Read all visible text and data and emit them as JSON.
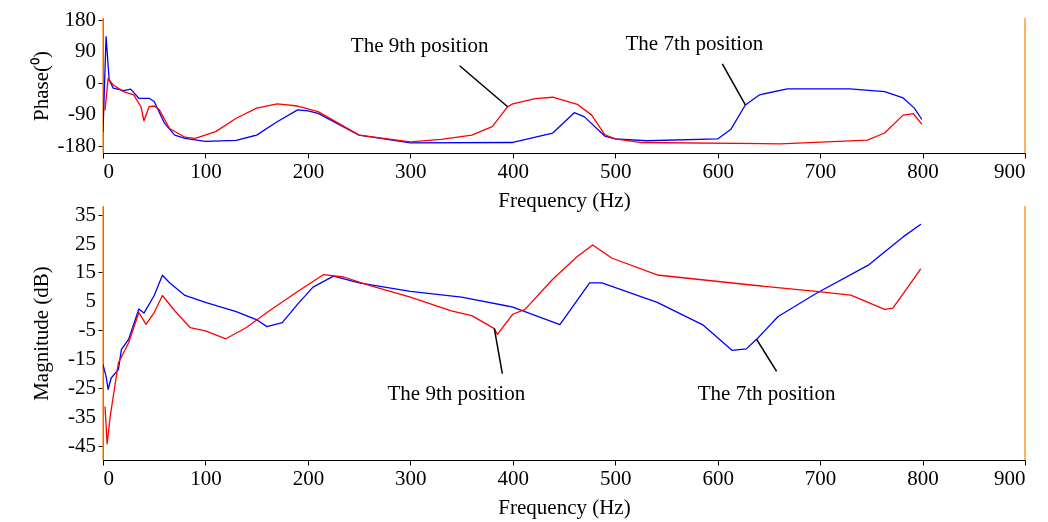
{
  "chart_data": [
    {
      "type": "line",
      "ylabel": "Phase(⁰)",
      "xlabel": "Frequency (Hz)",
      "xlim": [
        0,
        900
      ],
      "xticks": [
        0,
        100,
        200,
        300,
        400,
        500,
        600,
        700,
        800,
        900
      ],
      "ylim": [
        -200,
        185
      ],
      "yticks": [
        -180,
        -90,
        0,
        90,
        180
      ],
      "grid": false,
      "series": [
        {
          "color": "#0000ff",
          "x": [
            0,
            3,
            6,
            10,
            20,
            27,
            35,
            45,
            50,
            60,
            70,
            80,
            100,
            130,
            150,
            170,
            190,
            200,
            210,
            250,
            300,
            400,
            439,
            460,
            470,
            490,
            500,
            531,
            600,
            613,
            627,
            641,
            668,
            729,
            763,
            781,
            792,
            799
          ],
          "values": [
            -140,
            132,
            9,
            -15,
            -22,
            -18,
            -44,
            -44,
            -53,
            -115,
            -149,
            -158,
            -167,
            -164,
            -149,
            -111,
            -77,
            -80,
            -87,
            -149,
            -171,
            -170,
            -143,
            -85,
            -97,
            -152,
            -160,
            -165,
            -160,
            -132,
            -63,
            -34,
            -17,
            -17,
            -25,
            -43,
            -72,
            -103
          ]
        },
        {
          "color": "#ff0000",
          "x": [
            2,
            5,
            10,
            20,
            30,
            37,
            40,
            45,
            50,
            55,
            65,
            80,
            90,
            110,
            130,
            150,
            170,
            190,
            210,
            250,
            300,
            330,
            360,
            380,
            395,
            400,
            422,
            439,
            463,
            477,
            490,
            500,
            524,
            661,
            746,
            763,
            781,
            791,
            799
          ],
          "values": [
            -77,
            13,
            -6,
            -25,
            -34,
            -68,
            -108,
            -68,
            -66,
            -77,
            -130,
            -155,
            -158,
            -139,
            -101,
            -72,
            -60,
            -66,
            -82,
            -149,
            -168,
            -161,
            -149,
            -125,
            -68,
            -60,
            -45,
            -41,
            -61,
            -92,
            -148,
            -160,
            -170,
            -174,
            -163,
            -143,
            -92,
            -88,
            -117
          ]
        }
      ],
      "ref_lines": [
        {
          "axis": "x",
          "value": 0,
          "color": "#ff9933"
        },
        {
          "axis": "x",
          "value": 900,
          "color": "#ff9933"
        }
      ],
      "annotations": [
        {
          "text": "The 9th position",
          "x": 395,
          "y": -68
        },
        {
          "text": "The 7th position",
          "x": 627,
          "y": -63
        }
      ]
    },
    {
      "type": "line",
      "ylabel": "Magnitude (dB)",
      "xlabel": "Frequency (Hz)",
      "xlim": [
        0,
        900
      ],
      "xticks": [
        0,
        100,
        200,
        300,
        400,
        500,
        600,
        700,
        800,
        900
      ],
      "ylim": [
        -50,
        38
      ],
      "yticks": [
        -45,
        -35,
        -25,
        -15,
        -5,
        5,
        15,
        25,
        35
      ],
      "grid": false,
      "series": [
        {
          "color": "#0000ff",
          "x": [
            0,
            3,
            5,
            8,
            15,
            18,
            25,
            35,
            40,
            50,
            58,
            65,
            80,
            100,
            130,
            150,
            160,
            175,
            190,
            205,
            225,
            250,
            300,
            350,
            400,
            446,
            475,
            487,
            541,
            586,
            614,
            628,
            638,
            659,
            696,
            747,
            781,
            798
          ],
          "values": [
            -17,
            -21,
            -25.5,
            -21.6,
            -18.7,
            -11.7,
            -8.2,
            2.3,
            0.9,
            7,
            14,
            11.4,
            7,
            4.6,
            1.4,
            -1.4,
            -3.8,
            -2.4,
            4,
            9.9,
            13.7,
            11.4,
            8.4,
            6.4,
            3,
            -3.1,
            11.4,
            11.4,
            4.6,
            -3.3,
            -12,
            -11.5,
            -8.2,
            -0.3,
            7.7,
            17.5,
            27.3,
            31.6
          ]
        },
        {
          "color": "#ff0000",
          "x": [
            2,
            4,
            7,
            15,
            25,
            35,
            42,
            50,
            58,
            70,
            85,
            100,
            120,
            140,
            160,
            190,
            215,
            235,
            260,
            300,
            340,
            360,
            382,
            385,
            400,
            412,
            439,
            463,
            478,
            497,
            541,
            628,
            696,
            730,
            763,
            771,
            786,
            798
          ],
          "values": [
            -31.6,
            -44.4,
            -35,
            -16.4,
            -9.4,
            1.1,
            -3,
            1.1,
            7,
            1.7,
            -4.1,
            -5.3,
            -8,
            -4.1,
            1.1,
            8.4,
            14.2,
            13.4,
            10.5,
            6.4,
            1.7,
            0,
            -4.5,
            -6.5,
            0.5,
            2.2,
            12.6,
            20.5,
            24.5,
            19.9,
            14.1,
            10.8,
            8.4,
            7.1,
            2.2,
            2.6,
            10.1,
            16.1
          ]
        }
      ],
      "ref_lines": [
        {
          "axis": "x",
          "value": 0,
          "color": "#ff9933"
        },
        {
          "axis": "x",
          "value": 900,
          "color": "#ff9933"
        }
      ],
      "annotations": [
        {
          "text": "The 9th position",
          "x": 382,
          "y": -4.5
        },
        {
          "text": "The 7th position",
          "x": 638,
          "y": -8.2
        }
      ]
    }
  ]
}
